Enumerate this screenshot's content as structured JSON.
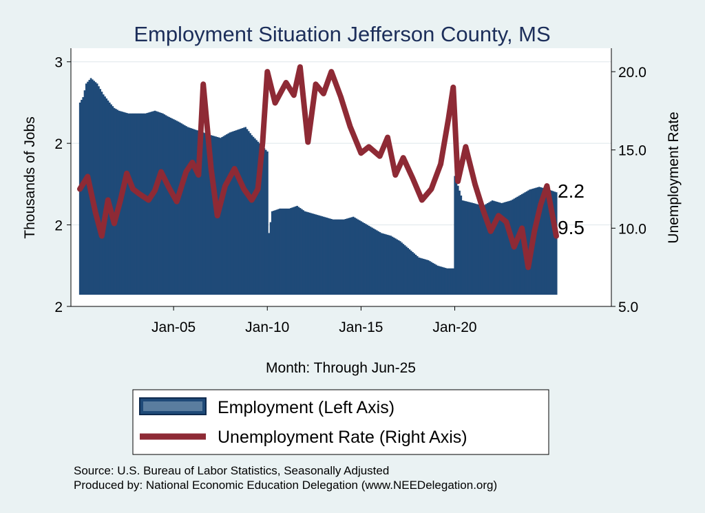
{
  "chart_data": {
    "type": "bar+line (dual axis)",
    "title": "Employment Situation Jefferson  County, MS",
    "xlabel": "Month: Through Jun-25",
    "ylabel_left": "Thousands of Jobs",
    "ylabel_right": "Unemployment Rate",
    "x_tick_labels": [
      "Jan-05",
      "Jan-10",
      "Jan-15",
      "Jan-20"
    ],
    "x_range": [
      "Jan-2000",
      "Jun-2025"
    ],
    "left_axis": {
      "tick_labels": [
        "2",
        "2",
        "2",
        "3"
      ],
      "tick_values": [
        1.8,
        2.1,
        2.4,
        2.7
      ],
      "ylim": [
        1.8,
        2.75
      ]
    },
    "right_axis": {
      "tick_labels": [
        "5.0",
        "10.0",
        "15.0",
        "20.0"
      ],
      "tick_values": [
        5,
        10,
        15,
        20
      ],
      "ylim": [
        5,
        21.5
      ]
    },
    "grid": true,
    "legend_placement": "bottom",
    "series": [
      {
        "name": "Employment (Left Axis)",
        "kind": "bar",
        "color": "#1f4a78",
        "edge_color": "#0e2a4e",
        "points": [
          [
            "2000-01",
            2.55
          ],
          [
            "2000-03",
            2.57
          ],
          [
            "2000-05",
            2.62
          ],
          [
            "2000-08",
            2.64
          ],
          [
            "2000-12",
            2.62
          ],
          [
            "2001-04",
            2.58
          ],
          [
            "2001-08",
            2.55
          ],
          [
            "2001-11",
            2.53
          ],
          [
            "2002-02",
            2.52
          ],
          [
            "2002-08",
            2.51
          ],
          [
            "2003-01",
            2.51
          ],
          [
            "2003-07",
            2.51
          ],
          [
            "2004-01",
            2.52
          ],
          [
            "2004-06",
            2.51
          ],
          [
            "2004-09",
            2.5
          ],
          [
            "2005-04",
            2.48
          ],
          [
            "2005-10",
            2.46
          ],
          [
            "2006-03",
            2.45
          ],
          [
            "2006-08",
            2.44
          ],
          [
            "2007-01",
            2.43
          ],
          [
            "2007-07",
            2.42
          ],
          [
            "2008-01",
            2.44
          ],
          [
            "2008-06",
            2.45
          ],
          [
            "2008-11",
            2.46
          ],
          [
            "2009-03",
            2.43
          ],
          [
            "2009-08",
            2.4
          ],
          [
            "2010-01",
            2.37
          ],
          [
            "2010-02",
            2.07
          ],
          [
            "2010-04",
            2.15
          ],
          [
            "2010-09",
            2.16
          ],
          [
            "2011-03",
            2.16
          ],
          [
            "2011-08",
            2.17
          ],
          [
            "2012-01",
            2.15
          ],
          [
            "2012-07",
            2.14
          ],
          [
            "2013-01",
            2.13
          ],
          [
            "2013-07",
            2.12
          ],
          [
            "2014-02",
            2.12
          ],
          [
            "2014-08",
            2.13
          ],
          [
            "2015-02",
            2.11
          ],
          [
            "2015-08",
            2.09
          ],
          [
            "2016-02",
            2.07
          ],
          [
            "2016-08",
            2.06
          ],
          [
            "2017-02",
            2.04
          ],
          [
            "2017-08",
            2.01
          ],
          [
            "2018-02",
            1.98
          ],
          [
            "2018-08",
            1.97
          ],
          [
            "2019-02",
            1.95
          ],
          [
            "2019-08",
            1.94
          ],
          [
            "2019-12",
            1.94
          ],
          [
            "2020-01",
            2.28
          ],
          [
            "2020-06",
            2.19
          ],
          [
            "2021-01",
            2.18
          ],
          [
            "2021-07",
            2.17
          ],
          [
            "2022-01",
            2.19
          ],
          [
            "2022-07",
            2.18
          ],
          [
            "2023-01",
            2.19
          ],
          [
            "2023-07",
            2.21
          ],
          [
            "2024-01",
            2.23
          ],
          [
            "2024-07",
            2.24
          ],
          [
            "2025-01",
            2.23
          ],
          [
            "2025-06",
            2.22
          ]
        ],
        "end_label": "2.2"
      },
      {
        "name": "Unemployment Rate (Right Axis)",
        "kind": "line",
        "color": "#8e2a35",
        "points": [
          [
            "2000-01",
            12.5
          ],
          [
            "2000-06",
            13.3
          ],
          [
            "2000-11",
            11.0
          ],
          [
            "2001-03",
            9.5
          ],
          [
            "2001-07",
            11.8
          ],
          [
            "2001-11",
            10.3
          ],
          [
            "2002-03",
            11.8
          ],
          [
            "2002-07",
            13.5
          ],
          [
            "2002-11",
            12.5
          ],
          [
            "2003-03",
            12.2
          ],
          [
            "2003-09",
            11.8
          ],
          [
            "2004-01",
            12.4
          ],
          [
            "2004-05",
            13.6
          ],
          [
            "2004-10",
            12.6
          ],
          [
            "2005-03",
            11.7
          ],
          [
            "2005-09",
            13.6
          ],
          [
            "2006-01",
            14.2
          ],
          [
            "2006-05",
            13.4
          ],
          [
            "2006-08",
            19.2
          ],
          [
            "2007-01",
            13.8
          ],
          [
            "2007-05",
            10.8
          ],
          [
            "2007-10",
            12.7
          ],
          [
            "2008-04",
            13.8
          ],
          [
            "2008-10",
            12.5
          ],
          [
            "2009-03",
            11.8
          ],
          [
            "2009-07",
            12.5
          ],
          [
            "2009-10",
            15.5
          ],
          [
            "2010-01",
            20.0
          ],
          [
            "2010-06",
            18.0
          ],
          [
            "2011-01",
            19.3
          ],
          [
            "2011-06",
            18.5
          ],
          [
            "2011-10",
            20.3
          ],
          [
            "2012-03",
            15.5
          ],
          [
            "2012-08",
            19.2
          ],
          [
            "2013-01",
            18.6
          ],
          [
            "2013-06",
            20.0
          ],
          [
            "2013-12",
            18.4
          ],
          [
            "2014-06",
            16.5
          ],
          [
            "2015-01",
            14.8
          ],
          [
            "2015-06",
            15.2
          ],
          [
            "2016-01",
            14.6
          ],
          [
            "2016-06",
            15.8
          ],
          [
            "2016-11",
            13.4
          ],
          [
            "2017-04",
            14.5
          ],
          [
            "2017-10",
            13.2
          ],
          [
            "2018-04",
            11.8
          ],
          [
            "2018-10",
            12.5
          ],
          [
            "2019-04",
            14.1
          ],
          [
            "2019-09",
            17.0
          ],
          [
            "2019-12",
            19.0
          ],
          [
            "2020-03",
            13.0
          ],
          [
            "2020-08",
            15.2
          ],
          [
            "2021-02",
            12.8
          ],
          [
            "2021-07",
            11.2
          ],
          [
            "2021-12",
            9.8
          ],
          [
            "2022-05",
            10.8
          ],
          [
            "2022-10",
            10.4
          ],
          [
            "2023-03",
            8.8
          ],
          [
            "2023-08",
            10.0
          ],
          [
            "2023-12",
            7.5
          ],
          [
            "2024-04",
            9.8
          ],
          [
            "2024-08",
            11.5
          ],
          [
            "2024-12",
            12.7
          ],
          [
            "2025-06",
            9.5
          ]
        ],
        "end_label": "9.5"
      }
    ]
  },
  "legend": {
    "employment_label": "Employment (Left Axis)",
    "unemployment_label": "Unemployment Rate (Right Axis)"
  },
  "notes": {
    "source": "Source: U.S. Bureau of Labor Statistics, Seasonally Adjusted",
    "produced": "Produced by: National Economic Education Delegation (www.NEEDelegation.org)"
  }
}
